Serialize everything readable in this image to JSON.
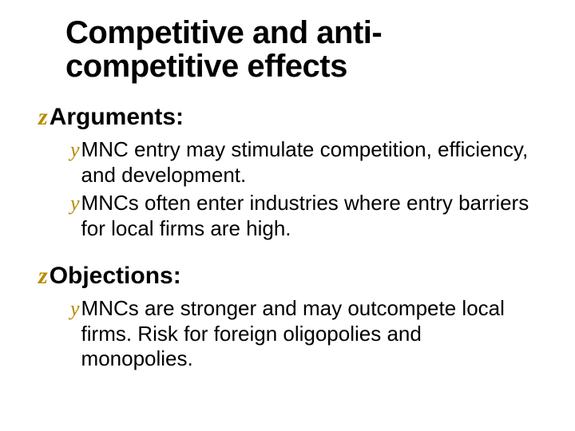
{
  "colors": {
    "bullet": "#b88a00",
    "underline": "#f2c23d",
    "text": "#000000",
    "background": "#ffffff"
  },
  "typography": {
    "title_fontsize": 40,
    "heading_fontsize": 30,
    "body_fontsize": 26,
    "title_weight": 900,
    "heading_weight": 900,
    "body_weight": 400
  },
  "title": "Competitive and anti-competitive effects",
  "title_line1": "Competitive and anti-",
  "title_line2": "competitive effects",
  "sections": [
    {
      "heading": "Arguments:",
      "items": [
        "MNC entry may stimulate competition, efficiency, and development.",
        "MNCs often enter industries where entry barriers for local firms are high."
      ]
    },
    {
      "heading": "Objections:",
      "items": [
        "MNCs are stronger and may outcompete local firms. Risk for foreign oligopolies and monopolies."
      ]
    }
  ]
}
